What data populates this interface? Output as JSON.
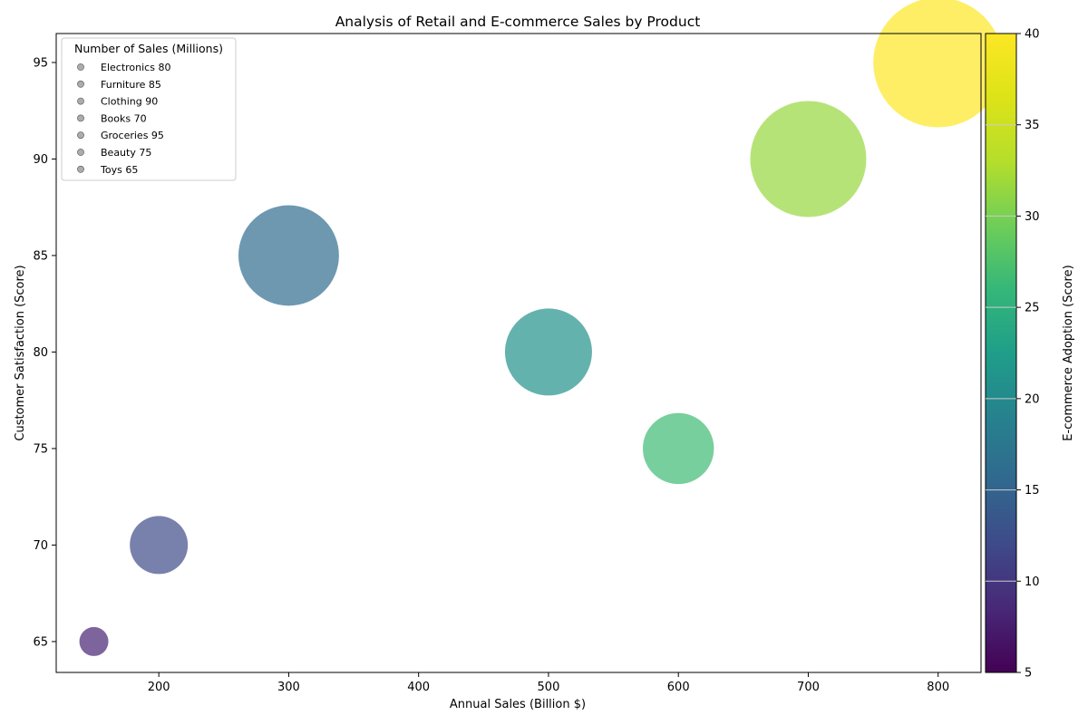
{
  "chart_data": {
    "type": "scatter",
    "title": "Analysis of Retail and E-commerce Sales by Product",
    "xlabel": "Annual Sales (Billion $)",
    "ylabel": "Customer Satisfaction (Score)",
    "xlim": [
      121,
      833
    ],
    "ylim": [
      63.4,
      96.5
    ],
    "xticks": [
      "200",
      "300",
      "400",
      "500",
      "600",
      "700",
      "800"
    ],
    "yticks": [
      "65",
      "70",
      "75",
      "80",
      "85",
      "90",
      "95"
    ],
    "grid": false,
    "colorbar": {
      "label": "E-commerce Adoption (Score)",
      "range": [
        5,
        40
      ],
      "ticks": [
        "5",
        "10",
        "15",
        "20",
        "25",
        "30",
        "35",
        "40"
      ],
      "colormap": "viridis"
    },
    "legend": {
      "title": "Number of Sales (Millions)",
      "location": "upper left",
      "entries": [
        "Electronics 80",
        "Furniture 85",
        "Clothing 90",
        "Books 70",
        "Groceries 95",
        "Beauty 75",
        "Toys 65"
      ]
    },
    "points": [
      {
        "x": 150,
        "y": 65,
        "color_value": 8,
        "size": 1
      },
      {
        "x": 200,
        "y": 70,
        "color_value": 12,
        "size": 4
      },
      {
        "x": 300,
        "y": 85,
        "color_value": 16,
        "size": 12
      },
      {
        "x": 500,
        "y": 80,
        "color_value": 21,
        "size": 9
      },
      {
        "x": 600,
        "y": 75,
        "color_value": 26.5,
        "size": 6
      },
      {
        "x": 700,
        "y": 90,
        "color_value": 31.5,
        "size": 16
      },
      {
        "x": 800,
        "y": 95,
        "color_value": 40,
        "size": 20
      }
    ]
  }
}
